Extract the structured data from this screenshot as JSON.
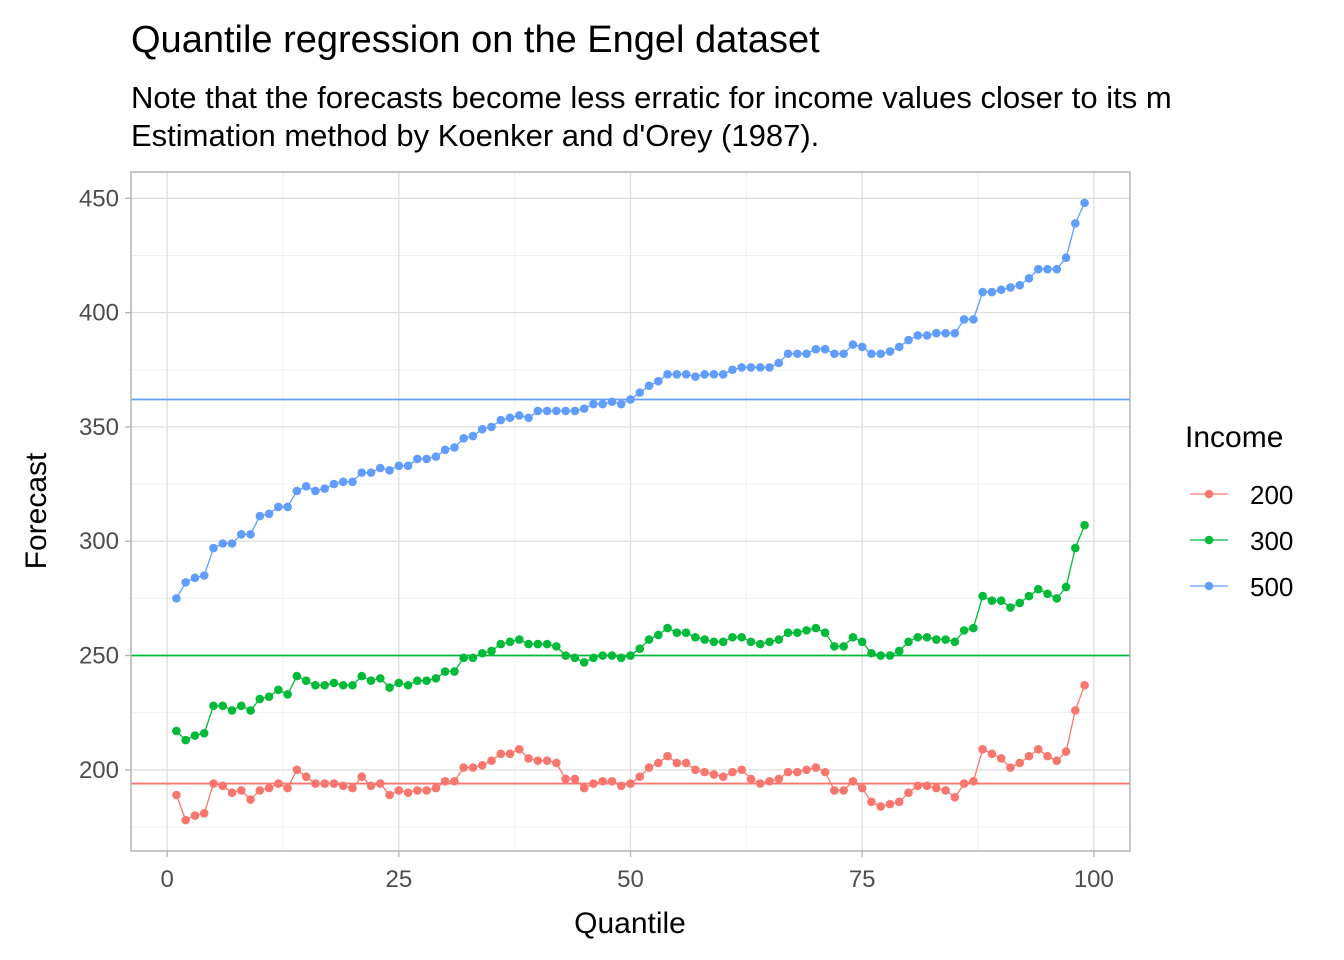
{
  "chart_data": {
    "type": "line",
    "title": "Quantile regression on the Engel dataset",
    "subtitle": [
      "Note that the forecasts become less erratic for income values closer to its m",
      "Estimation method by Koenker and d'Orey (1987)."
    ],
    "xlabel": "Quantile",
    "ylabel": "Forecast",
    "legend_title": "Income",
    "legend_position": "right",
    "grid": true,
    "xlim": [
      -3.9,
      103.9
    ],
    "xticks": [
      0,
      25,
      50,
      75,
      100
    ],
    "ylim": [
      164.5,
      461.5
    ],
    "yticks": [
      200,
      250,
      300,
      350,
      400,
      450
    ],
    "x": [
      1,
      2,
      3,
      4,
      5,
      6,
      7,
      8,
      9,
      10,
      11,
      12,
      13,
      14,
      15,
      16,
      17,
      18,
      19,
      20,
      21,
      22,
      23,
      24,
      25,
      26,
      27,
      28,
      29,
      30,
      31,
      32,
      33,
      34,
      35,
      36,
      37,
      38,
      39,
      40,
      41,
      42,
      43,
      44,
      45,
      46,
      47,
      48,
      49,
      50,
      51,
      52,
      53,
      54,
      55,
      56,
      57,
      58,
      59,
      60,
      61,
      62,
      63,
      64,
      65,
      66,
      67,
      68,
      69,
      70,
      71,
      72,
      73,
      74,
      75,
      76,
      77,
      78,
      79,
      80,
      81,
      82,
      83,
      84,
      85,
      86,
      87,
      88,
      89,
      90,
      91,
      92,
      93,
      94,
      95,
      96,
      97,
      98,
      99
    ],
    "series": [
      {
        "name": "200",
        "color": "#F8766D",
        "hline": 194,
        "values": [
          189,
          178,
          180,
          181,
          194,
          193,
          190,
          191,
          187,
          191,
          192,
          194,
          192,
          200,
          197,
          194,
          194,
          194,
          193,
          192,
          197,
          193,
          194,
          189,
          191,
          190,
          191,
          191,
          192,
          195,
          195,
          201,
          201,
          202,
          204,
          207,
          207,
          209,
          205,
          204,
          204,
          203,
          196,
          196,
          192,
          194,
          195,
          195,
          193,
          194,
          197,
          201,
          203,
          206,
          203,
          203,
          200,
          199,
          198,
          197,
          199,
          200,
          196,
          194,
          195,
          196,
          199,
          199,
          200,
          201,
          199,
          191,
          191,
          195,
          192,
          186,
          184,
          185,
          186,
          190,
          193,
          193,
          192,
          191,
          188,
          194,
          195,
          209,
          207,
          205,
          201,
          203,
          206,
          209,
          206,
          204,
          208,
          226,
          237
        ]
      },
      {
        "name": "300",
        "color": "#00BA38",
        "hline": 250,
        "values": [
          217,
          213,
          215,
          216,
          228,
          228,
          226,
          228,
          226,
          231,
          232,
          235,
          233,
          241,
          239,
          237,
          237,
          238,
          237,
          237,
          241,
          239,
          240,
          236,
          238,
          237,
          239,
          239,
          240,
          243,
          243,
          249,
          249,
          251,
          252,
          255,
          256,
          257,
          255,
          255,
          255,
          254,
          250,
          249,
          247,
          249,
          250,
          250,
          249,
          250,
          253,
          257,
          259,
          262,
          260,
          260,
          258,
          257,
          256,
          256,
          258,
          258,
          256,
          255,
          256,
          257,
          260,
          260,
          261,
          262,
          260,
          254,
          254,
          258,
          256,
          251,
          250,
          250,
          252,
          256,
          258,
          258,
          257,
          257,
          256,
          261,
          262,
          276,
          274,
          274,
          271,
          273,
          276,
          279,
          277,
          275,
          280,
          297,
          307
        ]
      },
      {
        "name": "500",
        "color": "#619CFF",
        "hline": 362,
        "values": [
          275,
          282,
          284,
          285,
          297,
          299,
          299,
          303,
          303,
          311,
          312,
          315,
          315,
          322,
          324,
          322,
          323,
          325,
          326,
          326,
          330,
          330,
          332,
          331,
          333,
          333,
          336,
          336,
          337,
          340,
          341,
          345,
          346,
          349,
          350,
          353,
          354,
          355,
          354,
          357,
          357,
          357,
          357,
          357,
          358,
          360,
          360,
          361,
          360,
          362,
          365,
          368,
          370,
          373,
          373,
          373,
          372,
          373,
          373,
          373,
          375,
          376,
          376,
          376,
          376,
          378,
          382,
          382,
          382,
          384,
          384,
          382,
          382,
          386,
          385,
          382,
          382,
          383,
          385,
          388,
          390,
          390,
          391,
          391,
          391,
          397,
          397,
          409,
          409,
          410,
          411,
          412,
          415,
          419,
          419,
          419,
          424,
          439,
          448
        ]
      }
    ]
  }
}
